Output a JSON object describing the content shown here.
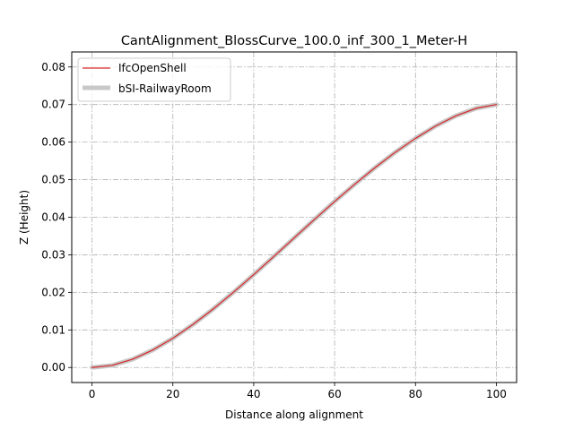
{
  "chart_data": {
    "type": "line",
    "title": "CantAlignment_BlossCurve_100.0_inf_300_1_Meter-H",
    "xlabel": "Distance along alignment",
    "ylabel": "Z (Height)",
    "xlim": [
      -5,
      105
    ],
    "ylim": [
      -0.004,
      0.084
    ],
    "xticks": [
      0,
      20,
      40,
      60,
      80,
      100
    ],
    "xtick_labels": [
      "0",
      "20",
      "40",
      "60",
      "80",
      "100"
    ],
    "yticks": [
      0.0,
      0.01,
      0.02,
      0.03,
      0.04,
      0.05,
      0.06,
      0.07,
      0.08
    ],
    "ytick_labels": [
      "0.00",
      "0.01",
      "0.02",
      "0.03",
      "0.04",
      "0.05",
      "0.06",
      "0.07",
      "0.08"
    ],
    "grid": true,
    "legend_position": "top-left",
    "x": [
      0,
      5,
      10,
      15,
      20,
      25,
      30,
      35,
      40,
      45,
      50,
      55,
      60,
      65,
      70,
      75,
      80,
      85,
      90,
      95,
      100
    ],
    "series": [
      {
        "name": "IfcOpenShell",
        "color": "#d62728",
        "style": "thin",
        "values": [
          0.0,
          0.00057,
          0.00218,
          0.00463,
          0.00778,
          0.01147,
          0.01559,
          0.02004,
          0.02473,
          0.02958,
          0.0345,
          0.0394,
          0.0442,
          0.0488,
          0.0532,
          0.0573,
          0.061,
          0.0643,
          0.067,
          0.069,
          0.07
        ]
      },
      {
        "name": "bSI-RailwayRoom",
        "color": "#c8c8c8",
        "style": "thick",
        "values": [
          0.0,
          0.00057,
          0.00218,
          0.00463,
          0.00778,
          0.01147,
          0.01559,
          0.02004,
          0.02473,
          0.02958,
          0.0345,
          0.0394,
          0.0442,
          0.0488,
          0.0532,
          0.0573,
          0.061,
          0.0643,
          0.067,
          0.069,
          0.07
        ]
      }
    ]
  }
}
